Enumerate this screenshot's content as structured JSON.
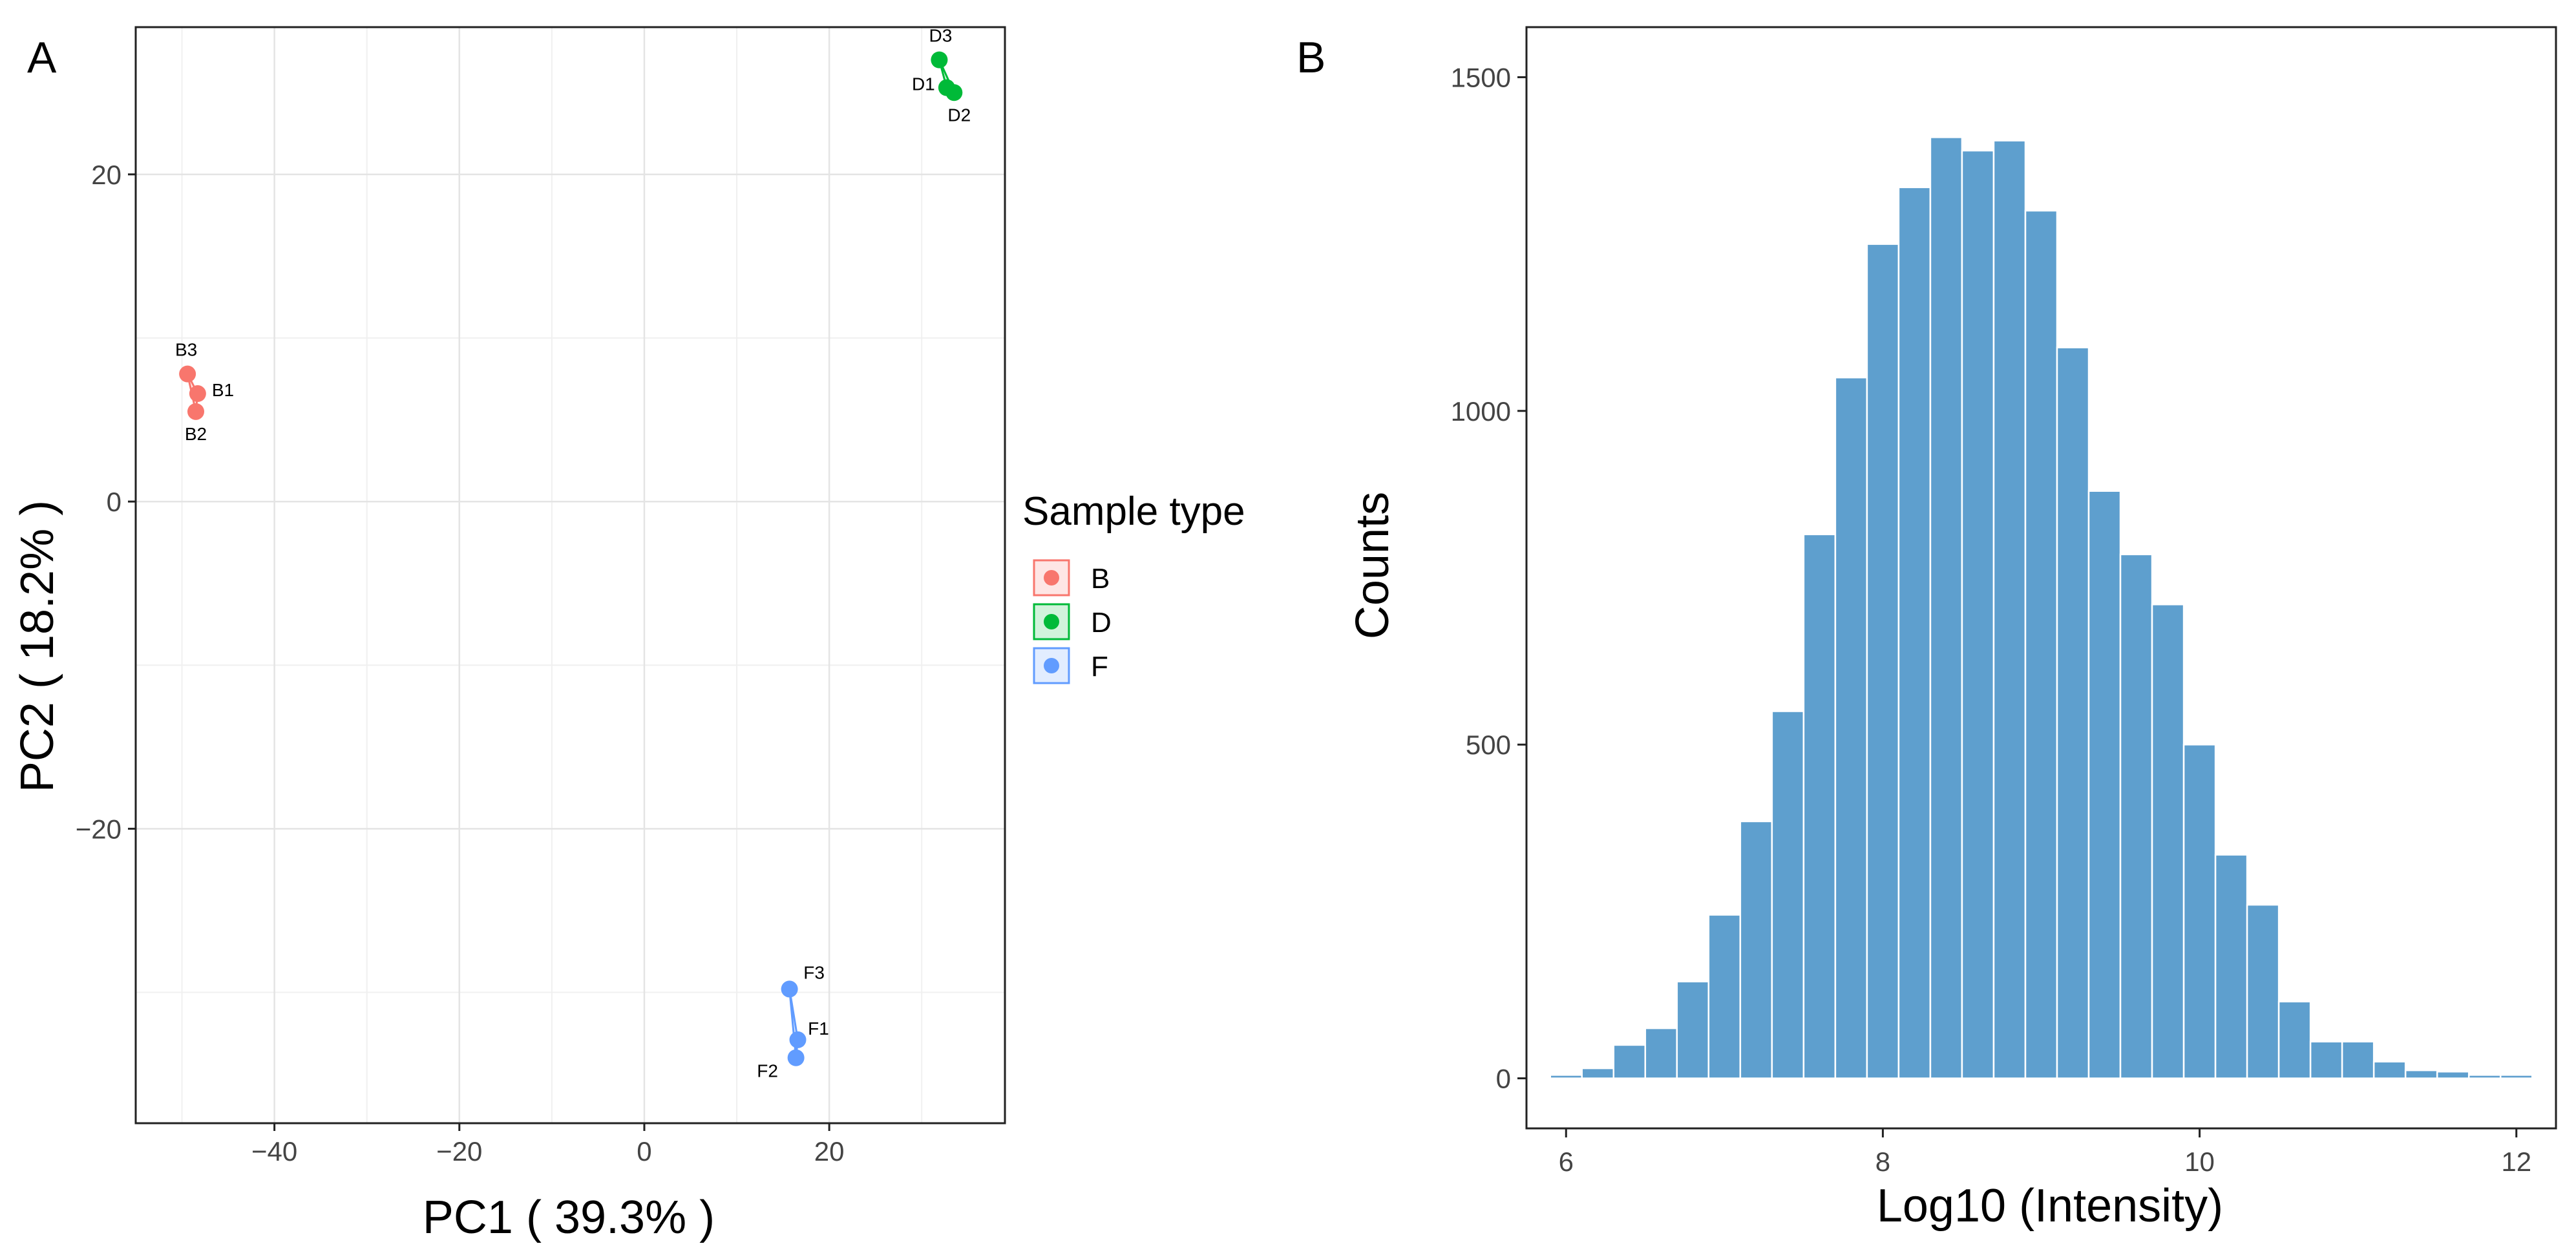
{
  "figure": {
    "panels": [
      {
        "letter": "A"
      },
      {
        "letter": "B"
      }
    ]
  },
  "chart_data": [
    {
      "type": "scatter",
      "panel": "A",
      "title": "",
      "xlabel": "PC1 ( 39.3% )",
      "ylabel": "PC2 ( 18.2% )",
      "xlim": [
        -55,
        39
      ],
      "ylim": [
        -38,
        29
      ],
      "xticks": [
        -40,
        -20,
        0,
        20
      ],
      "yticks": [
        -20,
        0,
        20
      ],
      "xtick_labels": [
        "−40",
        "−20",
        "0",
        "20"
      ],
      "ytick_labels": [
        "−20",
        "0",
        "20"
      ],
      "grid": true,
      "legend_title": "Sample type",
      "legend_position": "right",
      "series": [
        {
          "name": "B",
          "color": "#F8766D",
          "points": [
            {
              "label": "B1",
              "x": -48.3,
              "y": 6.6
            },
            {
              "label": "B2",
              "x": -48.5,
              "y": 5.5
            },
            {
              "label": "B3",
              "x": -49.4,
              "y": 7.8
            }
          ]
        },
        {
          "name": "D",
          "color": "#00BA38",
          "points": [
            {
              "label": "D1",
              "x": 32.7,
              "y": 25.3
            },
            {
              "label": "D2",
              "x": 33.5,
              "y": 25.0
            },
            {
              "label": "D3",
              "x": 31.9,
              "y": 27.0
            }
          ]
        },
        {
          "name": "F",
          "color": "#619CFF",
          "points": [
            {
              "label": "F1",
              "x": 16.6,
              "y": -32.9
            },
            {
              "label": "F2",
              "x": 16.4,
              "y": -34.0
            },
            {
              "label": "F3",
              "x": 15.7,
              "y": -29.8
            }
          ]
        }
      ]
    },
    {
      "type": "bar",
      "panel": "B",
      "subtype": "histogram",
      "title": "",
      "xlabel": "Log10 (Intensity)",
      "ylabel": "Counts",
      "xlim": [
        5.75,
        12.25
      ],
      "ylim": [
        -75,
        1575
      ],
      "xticks": [
        6,
        8,
        10,
        12
      ],
      "yticks": [
        0,
        500,
        1000,
        1500
      ],
      "xtick_labels": [
        "6",
        "8",
        "10",
        "12"
      ],
      "ytick_labels": [
        "0",
        "500",
        "1000",
        "1500"
      ],
      "grid": false,
      "bar_color": "#5E9FCE",
      "bin_width": 0.2,
      "bin_starts": [
        5.9,
        6.1,
        6.3,
        6.5,
        6.7,
        6.9,
        7.1,
        7.3,
        7.5,
        7.7,
        7.9,
        8.1,
        8.3,
        8.5,
        8.7,
        8.9,
        9.1,
        9.3,
        9.5,
        9.7,
        9.9,
        10.1,
        10.3,
        10.5,
        10.7,
        10.9,
        11.1,
        11.3,
        11.5,
        11.7,
        11.9
      ],
      "values": [
        5,
        15,
        50,
        75,
        145,
        245,
        385,
        550,
        815,
        1050,
        1250,
        1335,
        1410,
        1390,
        1405,
        1300,
        1095,
        880,
        785,
        710,
        500,
        335,
        260,
        115,
        55,
        55,
        25,
        12,
        10,
        5,
        5
      ]
    }
  ]
}
